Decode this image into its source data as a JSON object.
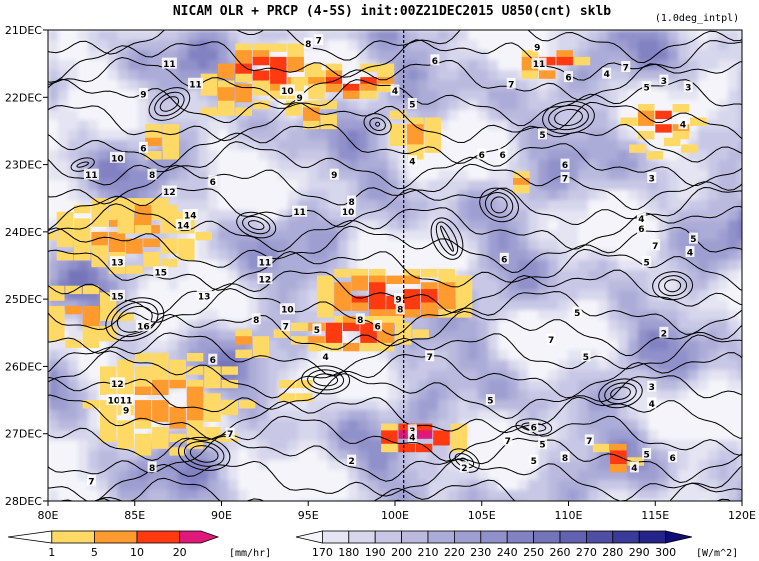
{
  "chart_data": {
    "type": "heatmap",
    "title": "NICAM  OLR + PRCP (4-5S) init:00Z21DEC2015 U850(cnt) sklb",
    "note": "(1.0deg_intpl)",
    "x_ticks": [
      "80E",
      "85E",
      "90E",
      "95E",
      "100E",
      "105E",
      "110E",
      "115E",
      "120E"
    ],
    "x_values": [
      80,
      85,
      90,
      95,
      100,
      105,
      110,
      115,
      120
    ],
    "xlim": [
      80,
      120
    ],
    "y_ticks": [
      "21DEC",
      "22DEC",
      "23DEC",
      "24DEC",
      "25DEC",
      "26DEC",
      "27DEC",
      "28DEC"
    ],
    "y_values": [
      21,
      22,
      23,
      24,
      25,
      26,
      27,
      28
    ],
    "ylim": [
      21,
      28
    ],
    "init_line_x": 100.5,
    "grid": false,
    "olr_colorbar": {
      "levels": [
        "170",
        "180",
        "190",
        "200",
        "210",
        "220",
        "230",
        "240",
        "250",
        "260",
        "270",
        "280",
        "290",
        "300"
      ],
      "unit": "[W/m^2]",
      "colors": [
        "#f4f4fa",
        "#e4e4f2",
        "#d6d6ec",
        "#c8c8e6",
        "#babadf",
        "#acacd8",
        "#9e9ed1",
        "#9090ca",
        "#8282c2",
        "#7474ba",
        "#6262b0",
        "#4e4ea4",
        "#3a3a98",
        "#24248a",
        "#0e0e78"
      ]
    },
    "prcp_colorbar": {
      "levels": [
        "1",
        "5",
        "10",
        "20"
      ],
      "unit": "[mm/hr]",
      "colors": [
        "#ffffff",
        "#ffd966",
        "#ff9a2e",
        "#ff3a10",
        "#e0187a"
      ]
    },
    "contour_labels": [
      {
        "lon": 95.0,
        "day": 21.2,
        "text": "8"
      },
      {
        "lon": 95.6,
        "day": 21.15,
        "text": "7"
      },
      {
        "lon": 87.0,
        "day": 21.5,
        "text": "11"
      },
      {
        "lon": 88.5,
        "day": 21.8,
        "text": "11"
      },
      {
        "lon": 85.5,
        "day": 21.95,
        "text": "9"
      },
      {
        "lon": 93.8,
        "day": 21.9,
        "text": "10"
      },
      {
        "lon": 94.5,
        "day": 22.0,
        "text": "9"
      },
      {
        "lon": 100.0,
        "day": 21.9,
        "text": "4"
      },
      {
        "lon": 101.0,
        "day": 22.1,
        "text": "5"
      },
      {
        "lon": 102.3,
        "day": 21.45,
        "text": "6"
      },
      {
        "lon": 108.2,
        "day": 21.25,
        "text": "9"
      },
      {
        "lon": 106.7,
        "day": 21.8,
        "text": "7"
      },
      {
        "lon": 108.3,
        "day": 21.5,
        "text": "11"
      },
      {
        "lon": 110.0,
        "day": 21.7,
        "text": "6"
      },
      {
        "lon": 112.2,
        "day": 21.65,
        "text": "4"
      },
      {
        "lon": 113.3,
        "day": 21.55,
        "text": "7"
      },
      {
        "lon": 114.5,
        "day": 21.85,
        "text": "5"
      },
      {
        "lon": 115.5,
        "day": 21.75,
        "text": "3"
      },
      {
        "lon": 116.9,
        "day": 21.85,
        "text": "3"
      },
      {
        "lon": 108.5,
        "day": 22.55,
        "text": "5"
      },
      {
        "lon": 116.6,
        "day": 22.4,
        "text": "4"
      },
      {
        "lon": 85.5,
        "day": 22.75,
        "text": "6"
      },
      {
        "lon": 84.0,
        "day": 22.9,
        "text": "10"
      },
      {
        "lon": 82.5,
        "day": 23.15,
        "text": "11"
      },
      {
        "lon": 86.0,
        "day": 23.15,
        "text": "8"
      },
      {
        "lon": 87.0,
        "day": 23.4,
        "text": "12"
      },
      {
        "lon": 89.5,
        "day": 23.25,
        "text": "6"
      },
      {
        "lon": 96.5,
        "day": 23.15,
        "text": "9"
      },
      {
        "lon": 101.0,
        "day": 22.95,
        "text": "4"
      },
      {
        "lon": 105.0,
        "day": 22.85,
        "text": "6"
      },
      {
        "lon": 106.2,
        "day": 22.85,
        "text": "6"
      },
      {
        "lon": 109.8,
        "day": 23.0,
        "text": "6"
      },
      {
        "lon": 109.8,
        "day": 23.2,
        "text": "7"
      },
      {
        "lon": 114.8,
        "day": 23.2,
        "text": "3"
      },
      {
        "lon": 97.5,
        "day": 23.55,
        "text": "8"
      },
      {
        "lon": 97.3,
        "day": 23.7,
        "text": "10"
      },
      {
        "lon": 94.5,
        "day": 23.7,
        "text": "11"
      },
      {
        "lon": 88.2,
        "day": 23.75,
        "text": "14"
      },
      {
        "lon": 87.8,
        "day": 23.9,
        "text": "14"
      },
      {
        "lon": 114.2,
        "day": 23.8,
        "text": "4"
      },
      {
        "lon": 114.2,
        "day": 23.95,
        "text": "6"
      },
      {
        "lon": 117.2,
        "day": 24.1,
        "text": "5"
      },
      {
        "lon": 115.0,
        "day": 24.2,
        "text": "7"
      },
      {
        "lon": 117.0,
        "day": 24.3,
        "text": "4"
      },
      {
        "lon": 84.0,
        "day": 24.45,
        "text": "13"
      },
      {
        "lon": 86.5,
        "day": 24.6,
        "text": "15"
      },
      {
        "lon": 92.5,
        "day": 24.45,
        "text": "11"
      },
      {
        "lon": 92.5,
        "day": 24.7,
        "text": "12"
      },
      {
        "lon": 106.3,
        "day": 24.4,
        "text": "6"
      },
      {
        "lon": 114.5,
        "day": 24.45,
        "text": "5"
      },
      {
        "lon": 84.0,
        "day": 24.95,
        "text": "15"
      },
      {
        "lon": 89.0,
        "day": 24.95,
        "text": "13"
      },
      {
        "lon": 93.8,
        "day": 25.15,
        "text": "10"
      },
      {
        "lon": 92.0,
        "day": 25.3,
        "text": "8"
      },
      {
        "lon": 93.7,
        "day": 25.4,
        "text": "7"
      },
      {
        "lon": 95.5,
        "day": 25.45,
        "text": "5"
      },
      {
        "lon": 98.0,
        "day": 25.3,
        "text": "8"
      },
      {
        "lon": 99.0,
        "day": 25.4,
        "text": "6"
      },
      {
        "lon": 100.2,
        "day": 25.0,
        "text": "9"
      },
      {
        "lon": 100.3,
        "day": 25.15,
        "text": "8"
      },
      {
        "lon": 110.5,
        "day": 25.2,
        "text": "5"
      },
      {
        "lon": 85.5,
        "day": 25.4,
        "text": "16"
      },
      {
        "lon": 109.0,
        "day": 25.6,
        "text": "7"
      },
      {
        "lon": 115.5,
        "day": 25.5,
        "text": "2"
      },
      {
        "lon": 89.5,
        "day": 25.9,
        "text": "6"
      },
      {
        "lon": 96.0,
        "day": 25.85,
        "text": "4"
      },
      {
        "lon": 102.0,
        "day": 25.85,
        "text": "7"
      },
      {
        "lon": 111.0,
        "day": 25.85,
        "text": "5"
      },
      {
        "lon": 84.0,
        "day": 26.25,
        "text": "12"
      },
      {
        "lon": 83.8,
        "day": 26.5,
        "text": "10"
      },
      {
        "lon": 84.5,
        "day": 26.5,
        "text": "11"
      },
      {
        "lon": 84.5,
        "day": 26.65,
        "text": "9"
      },
      {
        "lon": 114.8,
        "day": 26.3,
        "text": "3"
      },
      {
        "lon": 105.5,
        "day": 26.5,
        "text": "5"
      },
      {
        "lon": 114.8,
        "day": 26.55,
        "text": "4"
      },
      {
        "lon": 90.5,
        "day": 27.0,
        "text": "7"
      },
      {
        "lon": 101.0,
        "day": 26.95,
        "text": "3"
      },
      {
        "lon": 101.0,
        "day": 27.05,
        "text": "4"
      },
      {
        "lon": 108.0,
        "day": 26.9,
        "text": "6"
      },
      {
        "lon": 106.5,
        "day": 27.1,
        "text": "7"
      },
      {
        "lon": 108.5,
        "day": 27.15,
        "text": "5"
      },
      {
        "lon": 108.0,
        "day": 27.4,
        "text": "5"
      },
      {
        "lon": 109.8,
        "day": 27.35,
        "text": "8"
      },
      {
        "lon": 111.2,
        "day": 27.1,
        "text": "7"
      },
      {
        "lon": 114.5,
        "day": 27.3,
        "text": "5"
      },
      {
        "lon": 116.0,
        "day": 27.35,
        "text": "6"
      },
      {
        "lon": 97.5,
        "day": 27.4,
        "text": "2"
      },
      {
        "lon": 104.0,
        "day": 27.5,
        "text": "2"
      },
      {
        "lon": 113.8,
        "day": 27.5,
        "text": "4"
      },
      {
        "lon": 86.0,
        "day": 27.5,
        "text": "8"
      },
      {
        "lon": 82.5,
        "day": 27.7,
        "text": "7"
      }
    ]
  }
}
